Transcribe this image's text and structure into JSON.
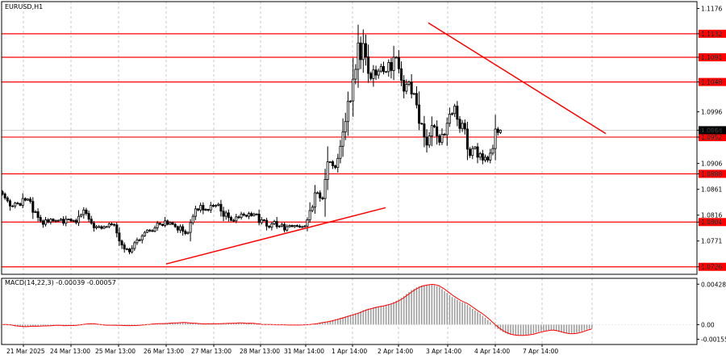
{
  "symbol": "EURUSD,H1",
  "indicator_label": "MACD(14,22,3) -0.00039 -0.00057",
  "colors": {
    "background": "#ffffff",
    "grid": "#c8c8c8",
    "candle": "#000000",
    "level_line": "#ff0000",
    "level_label_bg": "#ff0000",
    "level_label_text": "#ffffff",
    "price_label_bg": "#000000",
    "macd_hist": "#9e9e9e",
    "macd_signal": "#ff0000"
  },
  "chart_data": {
    "type": "candlestick",
    "price_axis": {
      "ylim": [
        1.0713,
        1.1188
      ],
      "ticks": [
        "1.1176",
        "1.1132",
        "1.1091",
        "1.1048",
        "1.0996",
        "1.0964",
        "1.0952",
        "1.0906",
        "1.0888",
        "1.0861",
        "1.0816",
        "1.0804",
        "1.0771",
        "1.0726"
      ]
    },
    "current_price": "1.0964",
    "levels": [
      "1.1132",
      "1.1091",
      "1.1048",
      "1.0952",
      "1.0888",
      "1.0804",
      "1.0726"
    ],
    "trendlines": [
      {
        "start": [
          "26 Mar 13:00",
          1.0731
        ],
        "end": [
          "2 Apr 14:00",
          1.0829
        ]
      },
      {
        "start": [
          "3 Apr 14:00",
          1.1151
        ],
        "end": [
          "8 Apr 10:00",
          1.0958
        ]
      }
    ],
    "x_tick_labels": [
      "21 Mar 2025",
      "24 Mar 13:00",
      "25 Mar 13:00",
      "26 Mar 13:00",
      "27 Mar 13:00",
      "28 Mar 13:00",
      "31 Mar 14:00",
      "1 Apr 14:00",
      "2 Apr 14:00",
      "3 Apr 14:00",
      "4 Apr 14:00",
      "7 Apr 14:00"
    ],
    "closes": [
      1.0853,
      1.0846,
      1.0841,
      1.0832,
      1.0832,
      1.0837,
      1.0836,
      1.0833,
      1.0845,
      1.0842,
      1.0844,
      1.084,
      1.0821,
      1.0822,
      1.0812,
      1.0806,
      1.08,
      1.0808,
      1.0804,
      1.0809,
      1.0806,
      1.0807,
      1.0807,
      1.0809,
      1.0802,
      1.0809,
      1.0809,
      1.0806,
      1.0807,
      1.0803,
      1.0814,
      1.0817,
      1.0825,
      1.0819,
      1.0809,
      1.0802,
      1.0794,
      1.0796,
      1.0796,
      1.0793,
      1.0796,
      1.0796,
      1.0801,
      1.08,
      1.0799,
      1.0785,
      1.0771,
      1.0764,
      1.0757,
      1.0757,
      1.0752,
      1.0758,
      1.0768,
      1.0773,
      1.0773,
      1.078,
      1.0786,
      1.079,
      1.0789,
      1.0788,
      1.0794,
      1.0802,
      1.08,
      1.0798,
      1.0806,
      1.08,
      1.0803,
      1.08,
      1.0796,
      1.079,
      1.0796,
      1.0788,
      1.0784,
      1.0786,
      1.0803,
      1.0814,
      1.0827,
      1.0825,
      1.0833,
      1.0825,
      1.0826,
      1.0825,
      1.0833,
      1.0832,
      1.0833,
      1.0835,
      1.0823,
      1.0814,
      1.082,
      1.0812,
      1.0807,
      1.0806,
      1.0813,
      1.0812,
      1.0818,
      1.0816,
      1.0814,
      1.0819,
      1.0815,
      1.0818,
      1.0818,
      1.0803,
      1.0808,
      1.0807,
      1.0797,
      1.0795,
      1.0801,
      1.0805,
      1.0796,
      1.0797,
      1.08,
      1.079,
      1.0796,
      1.0798,
      1.0796,
      1.0798,
      1.0797,
      1.0795,
      1.0796,
      1.0797,
      1.0808,
      1.0824,
      1.083,
      1.0855,
      1.0855,
      1.0846,
      1.0845,
      1.0878,
      1.0909,
      1.0909,
      1.0902,
      1.0899,
      1.0915,
      1.0936,
      1.0961,
      1.0979,
      1.1014,
      1.1015,
      1.1053,
      1.107,
      1.1116,
      1.1087,
      1.1115,
      1.1092,
      1.1063,
      1.1054,
      1.1069,
      1.106,
      1.1067,
      1.1075,
      1.1066,
      1.1066,
      1.1082,
      1.1068,
      1.1091,
      1.1091,
      1.1071,
      1.1051,
      1.1032,
      1.1044,
      1.1048,
      1.1027,
      1.1028,
      1.1008,
      1.0976,
      1.0975,
      1.0952,
      1.0938,
      1.0954,
      1.0972,
      1.097,
      1.0954,
      1.0943,
      1.0957,
      1.0956,
      1.0976,
      1.0992,
      1.0993,
      1.1006,
      1.0983,
      1.0967,
      1.0976,
      1.0966,
      1.0931,
      1.092,
      1.0932,
      1.0935,
      1.0917,
      1.0923,
      1.0912,
      1.0917,
      1.0912,
      1.0924,
      1.0932,
      1.0966,
      1.096,
      1.0964
    ],
    "macd": {
      "axis_ticks": [
        "0.00428",
        "0.00",
        "-0.00155"
      ],
      "ylim": [
        -0.0021,
        0.0049
      ],
      "hist": [
        0.0,
        2e-05,
        -1e-05,
        -5e-05,
        -0.0001,
        -0.00018,
        -0.00016,
        -0.00019,
        -0.00025,
        -0.0002,
        -0.0002,
        -0.00014,
        -0.00015,
        -0.00021,
        -0.00016,
        -0.00012,
        -0.00013,
        -0.00015,
        -0.0001,
        -0.00011,
        -6e-05,
        -4e-05,
        -0.0001,
        -7e-05,
        -0.00015,
        -9e-05,
        -8e-05,
        -0.0001,
        -9e-05,
        -4e-05,
        1e-05,
        0.0,
        7e-05,
        8e-05,
        0.0001,
        0.00011,
        7e-05,
        1e-05,
        0.0,
        -2e-05,
        -8e-05,
        -8e-05,
        -3e-05,
        -6e-05,
        -8e-05,
        -6e-05,
        -9e-05,
        -0.00011,
        -7e-05,
        -0.00012,
        -0.00011,
        -9e-05,
        -9e-05,
        -8e-05,
        -4e-05,
        -0.0,
        -0.0,
        3e-05,
        5e-05,
        0.0001,
        9e-05,
        0.00012,
        0.00012,
        0.0001,
        0.00012,
        0.00015,
        0.00019,
        0.00017,
        0.00018,
        0.00019,
        0.00024,
        0.00024,
        0.00019,
        0.00016,
        0.00017,
        0.00013,
        0.00015,
        9e-05,
        6e-05,
        8e-05,
        8e-05,
        0.0001,
        8e-05,
        0.00011,
        7e-05,
        0.0001,
        0.00012,
        0.00013,
        0.00014,
        0.00017,
        0.00013,
        0.00017,
        0.00018,
        0.00022,
        0.00014,
        0.00016,
        0.00013,
        0.00017,
        0.00013,
        0.00013,
        6e-05,
        3e-05,
        -1e-05,
        2e-05,
        5e-05,
        -1e-05,
        -1e-05,
        -1e-05,
        -2e-05,
        -3e-05,
        0.0,
        -3e-05,
        -7e-05,
        -2e-05,
        -5e-05,
        -5e-05,
        -4e-05,
        -5e-05,
        -1e-05,
        0.0,
        2e-05,
        4e-05,
        7e-05,
        0.0001,
        0.00016,
        0.00022,
        0.00026,
        0.00029,
        0.00034,
        0.00041,
        0.00049,
        0.00057,
        0.00063,
        0.00071,
        0.00079,
        0.00087,
        0.00096,
        0.00104,
        0.00111,
        0.0012,
        0.00129,
        0.00141,
        0.00154,
        0.00162,
        0.00169,
        0.00174,
        0.00182,
        0.00189,
        0.00193,
        0.00198,
        0.00203,
        0.00211,
        0.00218,
        0.00227,
        0.00238,
        0.00253,
        0.00266,
        0.00284,
        0.00304,
        0.00325,
        0.00344,
        0.00365,
        0.00379,
        0.00394,
        0.00407,
        0.00414,
        0.00418,
        0.00423,
        0.00426,
        0.00428,
        0.0042,
        0.00409,
        0.00396,
        0.00376,
        0.00355,
        0.00335,
        0.00314,
        0.00295,
        0.00279,
        0.00262,
        0.00246,
        0.00235,
        0.00225,
        0.00208,
        0.00188,
        0.00166,
        0.0015,
        0.00133,
        0.00114,
        0.00093,
        0.00073,
        0.00048,
        0.00024,
        -2e-05,
        -0.00025,
        -0.00046,
        -0.00063,
        -0.00079,
        -0.00091,
        -0.00101,
        -0.00107,
        -0.00111,
        -0.00114,
        -0.00115,
        -0.00114,
        -0.00112,
        -0.00109,
        -0.00106,
        -0.00101,
        -0.00094,
        -0.00086,
        -0.00078,
        -0.00073,
        -0.00067,
        -0.00062,
        -0.00058,
        -0.00057,
        -0.00062,
        -0.00069,
        -0.00076,
        -0.00084,
        -0.00091,
        -0.00095,
        -0.00097,
        -0.00096,
        -0.00093,
        -0.00087,
        -0.00079,
        -0.0007,
        -0.00061,
        -0.00052,
        -0.00045,
        -0.00039
      ]
    }
  }
}
